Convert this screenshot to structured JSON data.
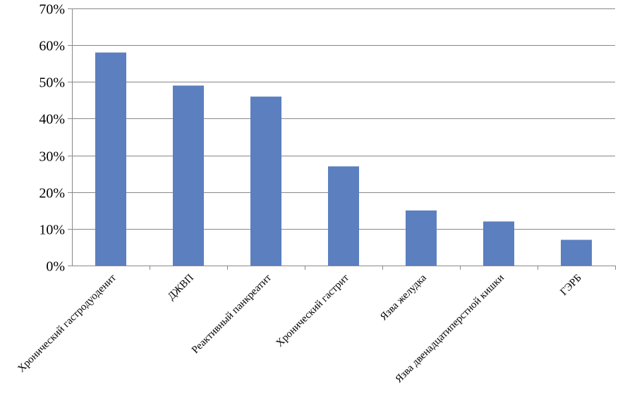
{
  "chart_data": {
    "type": "bar",
    "title": "",
    "xlabel": "",
    "ylabel": "",
    "categories": [
      "Хронический гастродуоденит",
      "ДЖВП",
      "Реактивный панкреатит",
      "Хронический гастрит",
      "Язва желудка",
      "Язва двенадцатиперстной кишки",
      "ГЭРБ"
    ],
    "values": [
      58,
      49,
      46,
      27,
      15,
      12,
      7
    ],
    "ylim": [
      0,
      70
    ],
    "yticks": [
      0,
      10,
      20,
      30,
      40,
      50,
      60,
      70
    ],
    "ytick_labels": [
      "0%",
      "10%",
      "20%",
      "30%",
      "40%",
      "50%",
      "60%",
      "70%"
    ],
    "grid": true,
    "legend": "none",
    "colors": {
      "bar": "#5b7fbf",
      "grid": "#888888",
      "axis": "#888888"
    }
  }
}
